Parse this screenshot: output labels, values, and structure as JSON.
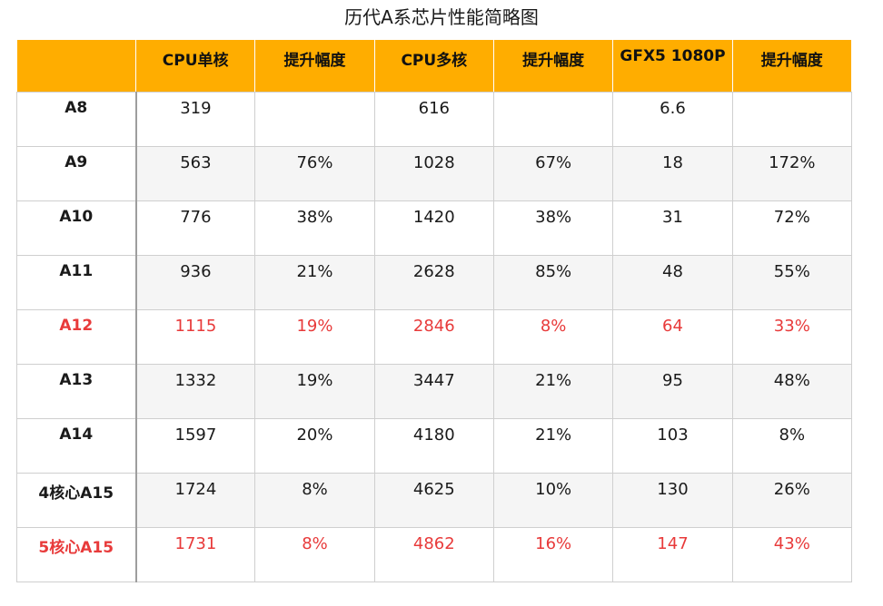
{
  "chart_data": {
    "type": "table",
    "title": "历代A系芯片性能简略图",
    "columns": [
      "",
      "CPU单核",
      "提升幅度",
      "CPU多核",
      "提升幅度",
      "GFX5 1080P",
      "提升幅度"
    ],
    "rows": [
      {
        "chip": "A8",
        "values": [
          "319",
          "",
          "616",
          "",
          "6.6",
          ""
        ],
        "highlight": false
      },
      {
        "chip": "A9",
        "values": [
          "563",
          "76%",
          "1028",
          "67%",
          "18",
          "172%"
        ],
        "highlight": false
      },
      {
        "chip": "A10",
        "values": [
          "776",
          "38%",
          "1420",
          "38%",
          "31",
          "72%"
        ],
        "highlight": false
      },
      {
        "chip": "A11",
        "values": [
          "936",
          "21%",
          "2628",
          "85%",
          "48",
          "55%"
        ],
        "highlight": false
      },
      {
        "chip": "A12",
        "values": [
          "1115",
          "19%",
          "2846",
          "8%",
          "64",
          "33%"
        ],
        "highlight": true
      },
      {
        "chip": "A13",
        "values": [
          "1332",
          "19%",
          "3447",
          "21%",
          "95",
          "48%"
        ],
        "highlight": false
      },
      {
        "chip": "A14",
        "values": [
          "1597",
          "20%",
          "4180",
          "21%",
          "103",
          "8%"
        ],
        "highlight": false
      },
      {
        "chip": "4核心A15",
        "values": [
          "1724",
          "8%",
          "4625",
          "10%",
          "130",
          "26%"
        ],
        "highlight": false
      },
      {
        "chip": "5核心A15",
        "values": [
          "1731",
          "8%",
          "4862",
          "16%",
          "147",
          "43%"
        ],
        "highlight": true
      }
    ]
  },
  "colors": {
    "header_background": "#ffad00",
    "highlight_text": "#e83a3a",
    "stripe": "#f5f5f5"
  }
}
